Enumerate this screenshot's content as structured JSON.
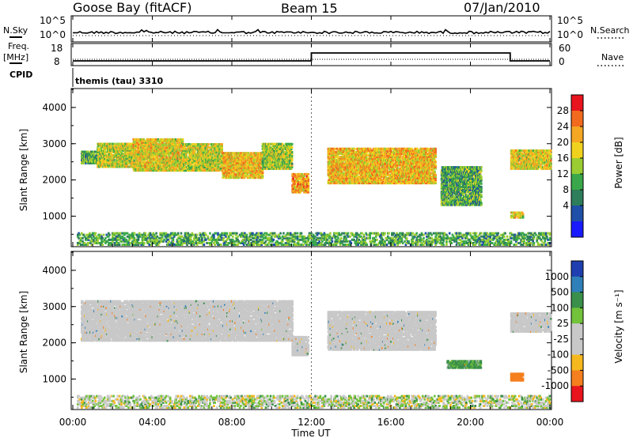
{
  "header": {
    "station": "Goose Bay (fitACF)",
    "beam": "Beam 15",
    "date": "07/Jan/2010"
  },
  "left_labels": {
    "nsky": "N.Sky",
    "freq": "Freq.",
    "mhz": "[MHz]",
    "cpid": "CPID"
  },
  "right_labels": {
    "nsearch": "N.Search",
    "nave": "Nave"
  },
  "noise_panel": {
    "y_ticks": [
      "10^5",
      "10^0"
    ],
    "right_ticks": [
      "10^5",
      "10^0"
    ]
  },
  "freq_panel": {
    "y_ticks": [
      "18",
      "8"
    ],
    "right_ticks": [
      "60",
      "0"
    ]
  },
  "cpid_text": "themis (tau) 3310",
  "power_colorbar": {
    "label": "Power [dB]",
    "ticks": [
      "28",
      "24",
      "20",
      "16",
      "12",
      "8",
      "4"
    ],
    "colors": [
      "#e8141e",
      "#f26a1e",
      "#f5a623",
      "#f0d21e",
      "#9acd32",
      "#3aa84a",
      "#2e7d5b",
      "#1f4fa8",
      "#1a1aff"
    ]
  },
  "velocity_colorbar": {
    "label": "Velocity [m s⁻¹]",
    "ticks": [
      "1000",
      "500",
      "100",
      "25",
      "-25",
      "-100",
      "-500",
      "-1000"
    ],
    "colors": [
      "#1f3fb0",
      "#2f7fb8",
      "#3a8f4a",
      "#72c23a",
      "#c8c8c8",
      "#c8c8c8",
      "#f5b81e",
      "#f57f1e",
      "#e8141e"
    ]
  },
  "range_axis": {
    "label": "Slant Range [km]",
    "ticks": [
      "4000",
      "3000",
      "2000",
      "1000"
    ]
  },
  "time_axis": {
    "label": "Time UT",
    "ticks": [
      "00:00",
      "04:00",
      "08:00",
      "12:00",
      "16:00",
      "20:00",
      "00:00"
    ]
  },
  "chart_data": [
    {
      "type": "line",
      "title": "N.Sky / N.Search",
      "x": [
        0,
        24
      ],
      "xlabel": "Time UT",
      "ylabel": "N.Sky",
      "note": "noise level near 10^0..10^5, roughly flat"
    },
    {
      "type": "line",
      "title": "Freq. [MHz] / Nave",
      "series": [
        {
          "name": "Freq.",
          "x": [
            0,
            12.0,
            12.0,
            22.0,
            22.0,
            24.0
          ],
          "y": [
            10.5,
            10.5,
            15.5,
            15.5,
            10.5,
            10.5
          ]
        }
      ],
      "ylim": [
        8,
        18
      ]
    },
    {
      "type": "heatmap",
      "title": "Power [dB]",
      "xlabel": "Time UT",
      "ylabel": "Slant Range [km]",
      "xlim": [
        0,
        24
      ],
      "ylim": [
        180,
        4500
      ],
      "zlim": [
        0,
        30
      ],
      "colorbar_label": "Power [dB]",
      "regions": [
        {
          "t": [
            0.4,
            1.2
          ],
          "range": [
            2450,
            2800
          ],
          "value": 8
        },
        {
          "t": [
            1.2,
            3.0
          ],
          "range": [
            2350,
            3000
          ],
          "value": 14
        },
        {
          "t": [
            3.0,
            5.5
          ],
          "range": [
            2250,
            3150
          ],
          "value": 16
        },
        {
          "t": [
            5.5,
            7.5
          ],
          "range": [
            2250,
            3000
          ],
          "value": 14
        },
        {
          "t": [
            7.5,
            9.5
          ],
          "range": [
            2050,
            2750
          ],
          "value": 18
        },
        {
          "t": [
            9.5,
            11.0
          ],
          "range": [
            2300,
            3000
          ],
          "value": 12
        },
        {
          "t": [
            11.0,
            11.8
          ],
          "range": [
            1650,
            2150
          ],
          "value": 20
        },
        {
          "t": [
            12.8,
            18.2
          ],
          "range": [
            1900,
            2850
          ],
          "value": 18
        },
        {
          "t": [
            18.5,
            20.5
          ],
          "range": [
            1300,
            2350
          ],
          "value": 8
        },
        {
          "t": [
            22.0,
            22.6
          ],
          "range": [
            950,
            1100
          ],
          "value": 16
        },
        {
          "t": [
            22.0,
            24.0
          ],
          "range": [
            2300,
            2800
          ],
          "value": 16
        }
      ]
    },
    {
      "type": "heatmap",
      "title": "Velocity [m s-1]",
      "xlabel": "Time UT",
      "ylabel": "Slant Range [km]",
      "xlim": [
        0,
        24
      ],
      "ylim": [
        180,
        4500
      ],
      "zlim": [
        -1000,
        1000
      ],
      "colorbar_label": "Velocity [m s-1]",
      "regions": [
        {
          "t": [
            0.4,
            11.0
          ],
          "range": [
            2050,
            3150
          ],
          "value": 0
        },
        {
          "t": [
            11.0,
            11.8
          ],
          "range": [
            1650,
            2150
          ],
          "value": 0
        },
        {
          "t": [
            12.8,
            18.2
          ],
          "range": [
            1800,
            2850
          ],
          "value": 0
        },
        {
          "t": [
            18.8,
            20.5
          ],
          "range": [
            1300,
            1500
          ],
          "value": 100
        },
        {
          "t": [
            22.0,
            22.6
          ],
          "range": [
            950,
            1150
          ],
          "value": -500
        },
        {
          "t": [
            22.0,
            24.0
          ],
          "range": [
            2300,
            2800
          ],
          "value": 0
        }
      ]
    }
  ]
}
